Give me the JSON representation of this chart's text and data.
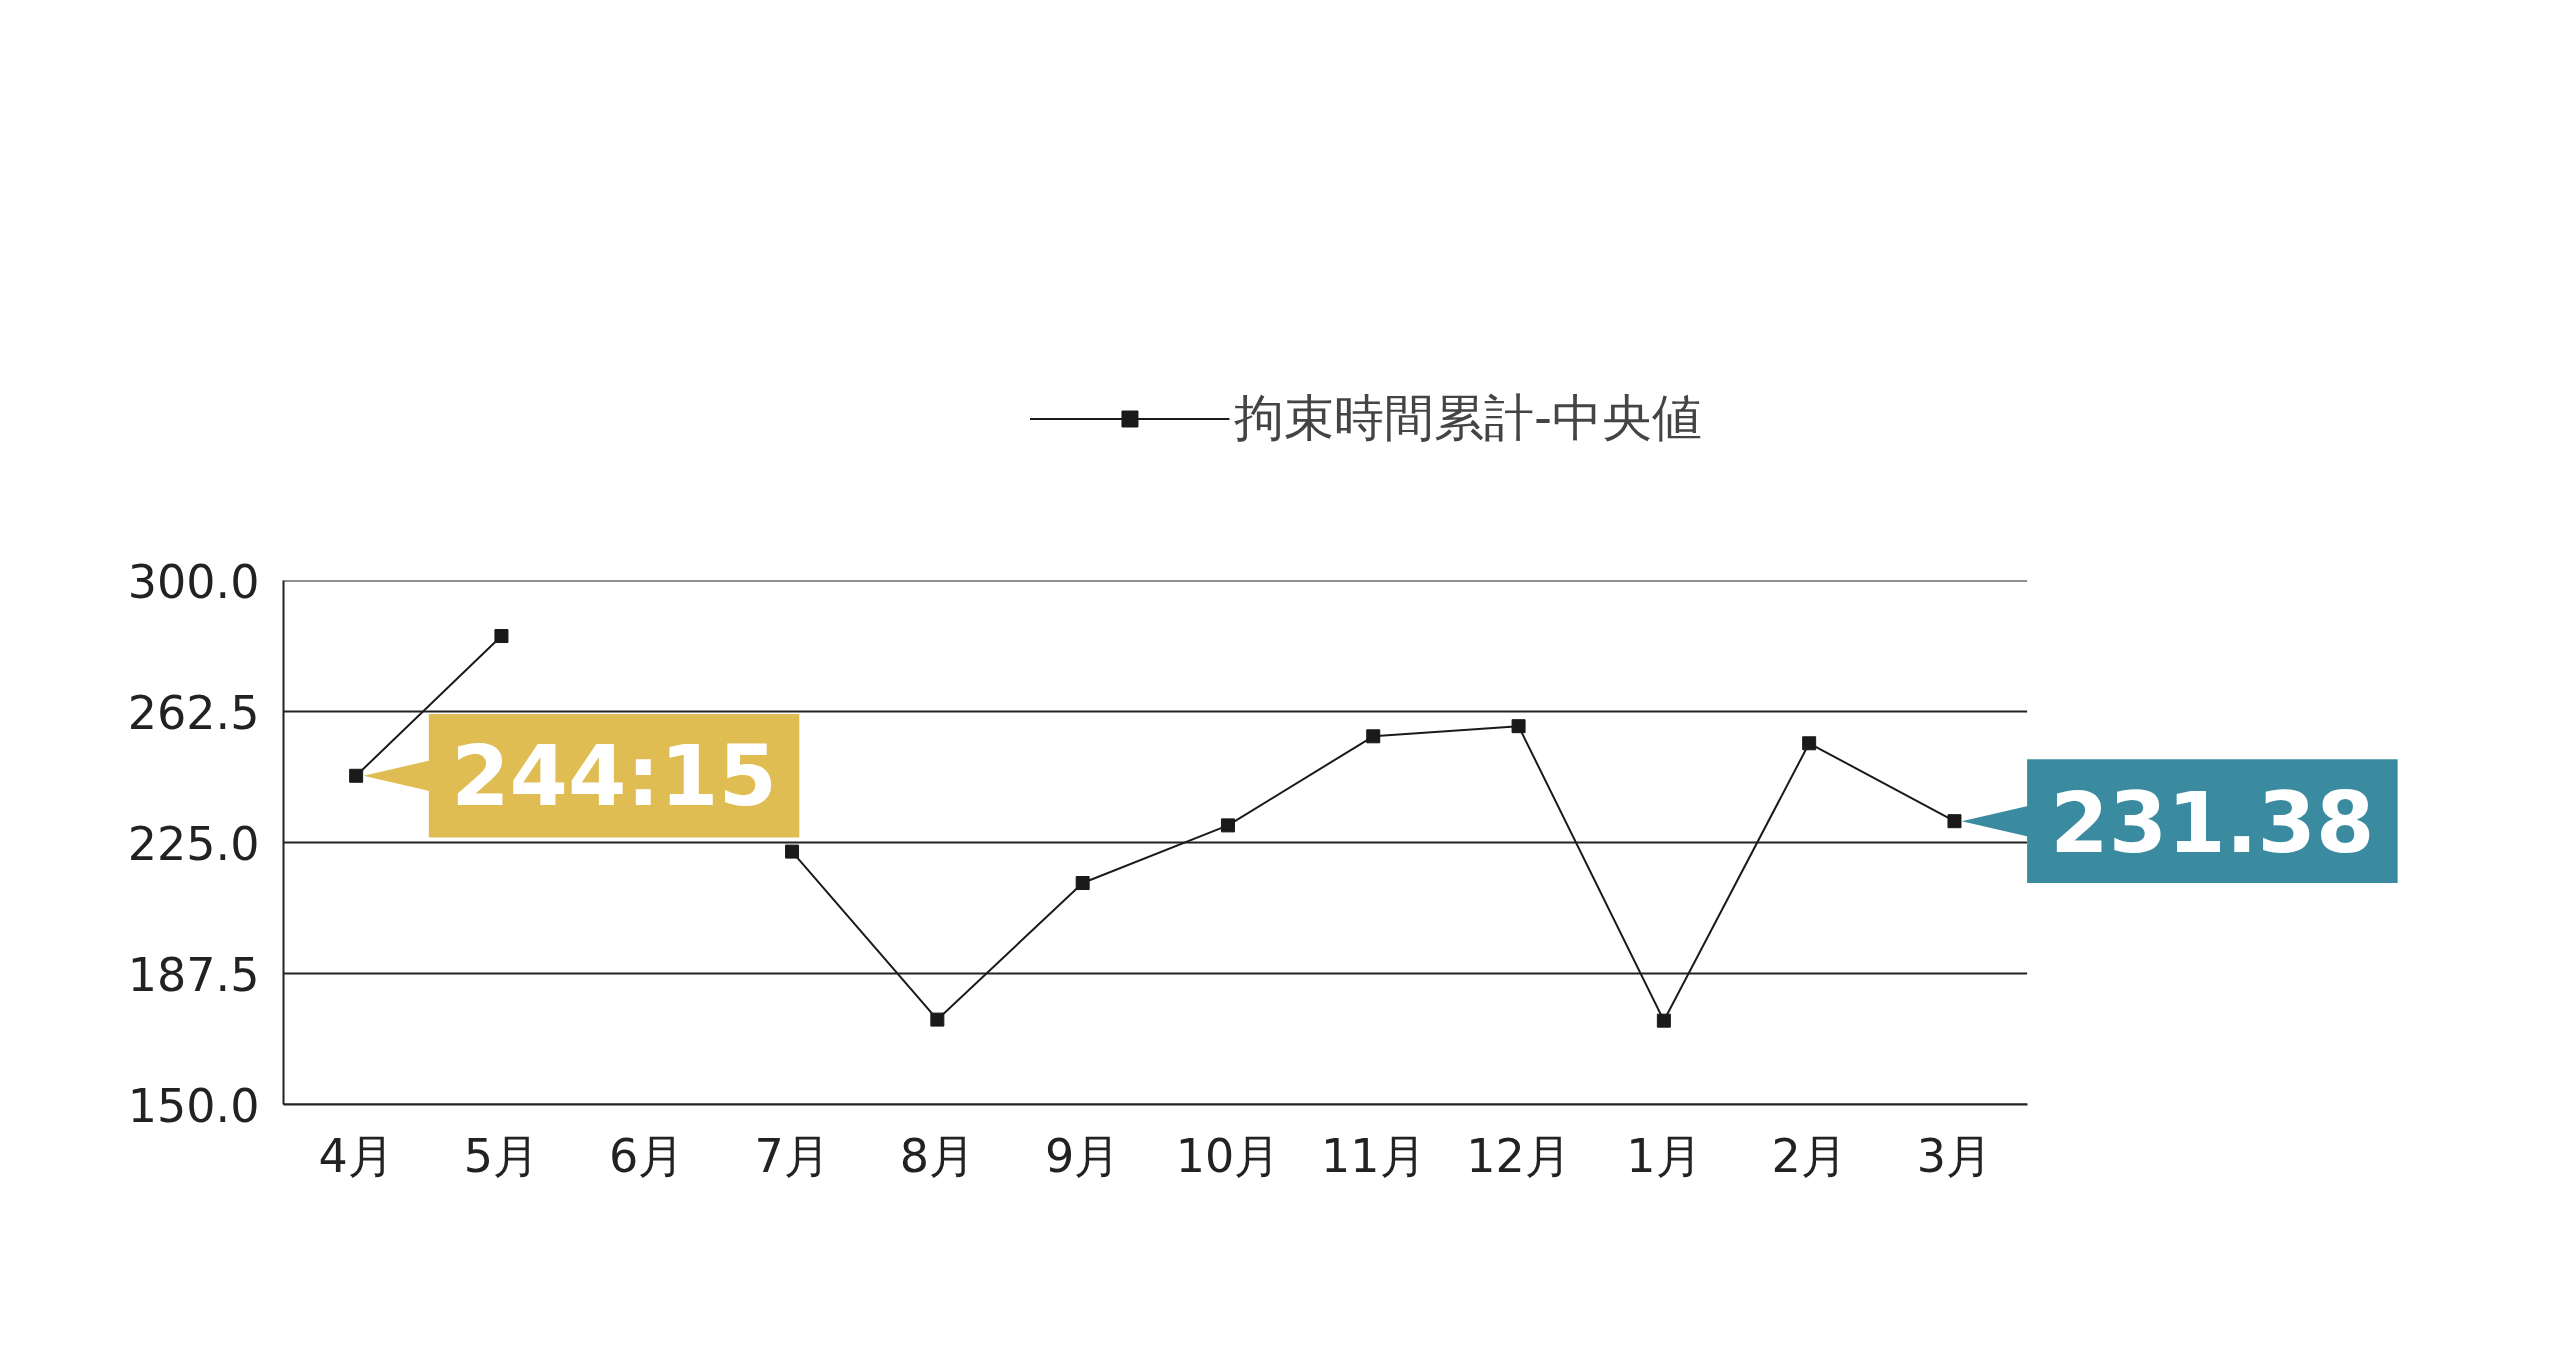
{
  "chart_data": {
    "type": "line",
    "categories": [
      "4月",
      "5月",
      "6月",
      "7月",
      "8月",
      "9月",
      "10月",
      "11月",
      "12月",
      "1月",
      "2月",
      "3月"
    ],
    "series": [
      {
        "name": "拘束時間累計-中央値",
        "color": "#1a1a1a",
        "values": [
          244.1,
          284.1,
          null,
          222.4,
          174.3,
          213.4,
          229.9,
          255.4,
          258.3,
          174.0,
          253.4,
          231.1
        ]
      }
    ],
    "ylim": [
      150,
      300
    ],
    "yticks": [
      {
        "value": 150,
        "label": "150.0"
      },
      {
        "value": 187.5,
        "label": "187.5"
      },
      {
        "value": 225,
        "label": "225.0"
      },
      {
        "value": 262.5,
        "label": "262.5"
      },
      {
        "value": 300,
        "label": "300.0"
      }
    ],
    "grid": "y",
    "legend": "top",
    "marker": "square",
    "line_style": "solid",
    "annotations": [
      {
        "text": "244:15",
        "x": "4月",
        "y": 244.1
      },
      {
        "text": "231.38",
        "x": "3月",
        "y": 231.1
      }
    ]
  }
}
